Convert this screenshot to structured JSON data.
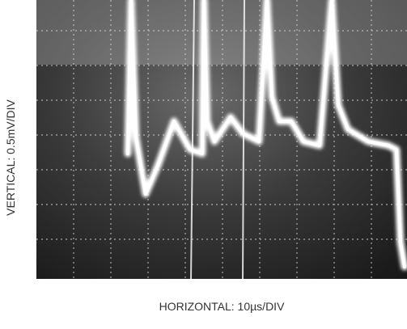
{
  "labels": {
    "vertical": "VERTICAL: 0.5mV/DIV",
    "horizontal": "HORIZONTAL: 10µs/DIV"
  }
}
